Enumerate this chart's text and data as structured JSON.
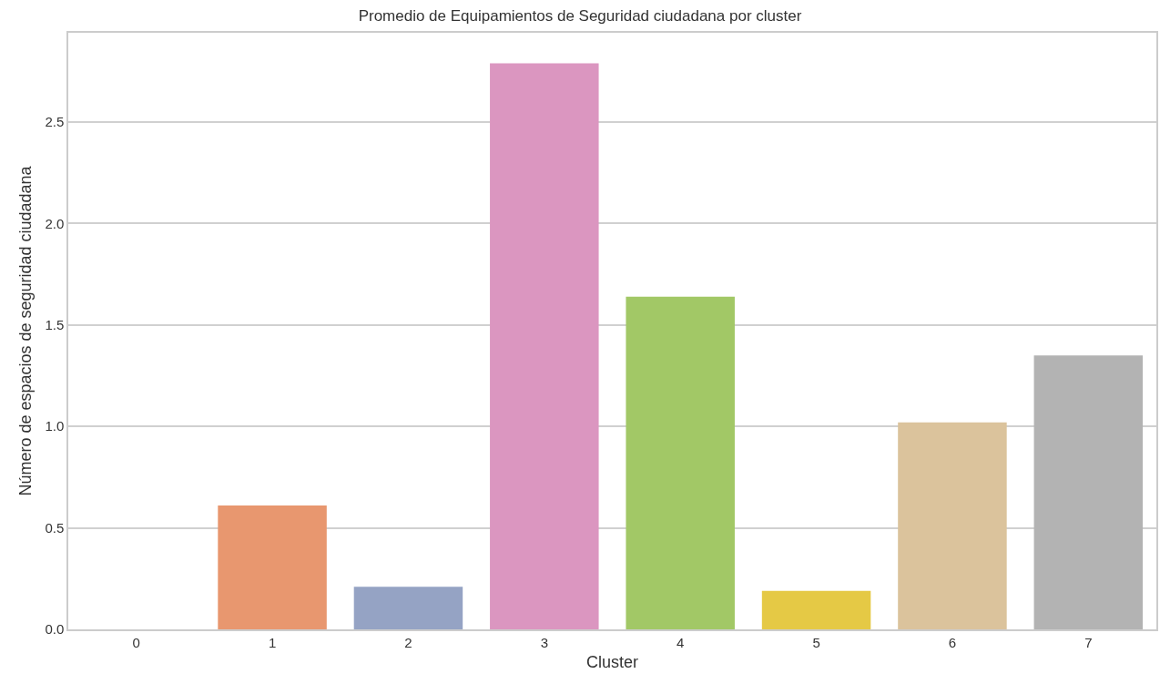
{
  "chart_data": {
    "type": "bar",
    "title": "Promedio de Equipamientos de Seguridad ciudadana por cluster",
    "xlabel": "Cluster",
    "ylabel": "Número de espacios de seguridad ciudadana",
    "categories": [
      "0",
      "1",
      "2",
      "3",
      "4",
      "5",
      "6",
      "7"
    ],
    "values": [
      0,
      0.61,
      0.21,
      2.79,
      1.64,
      0.19,
      1.02,
      1.35
    ],
    "colors": [
      "#7ab9a5",
      "#e8976f",
      "#95a3c4",
      "#db96c0",
      "#a2c866",
      "#e5c945",
      "#dbc39c",
      "#b3b3b3"
    ],
    "ylim": [
      0,
      2.94
    ],
    "yticks": [
      {
        "value": 0,
        "label": "0.0"
      },
      {
        "value": 0.5,
        "label": "0.5"
      },
      {
        "value": 1,
        "label": "1.0"
      },
      {
        "value": 1.5,
        "label": "1.5"
      },
      {
        "value": 2,
        "label": "2.0"
      },
      {
        "value": 2.5,
        "label": "2.5"
      }
    ],
    "grid": "y"
  }
}
